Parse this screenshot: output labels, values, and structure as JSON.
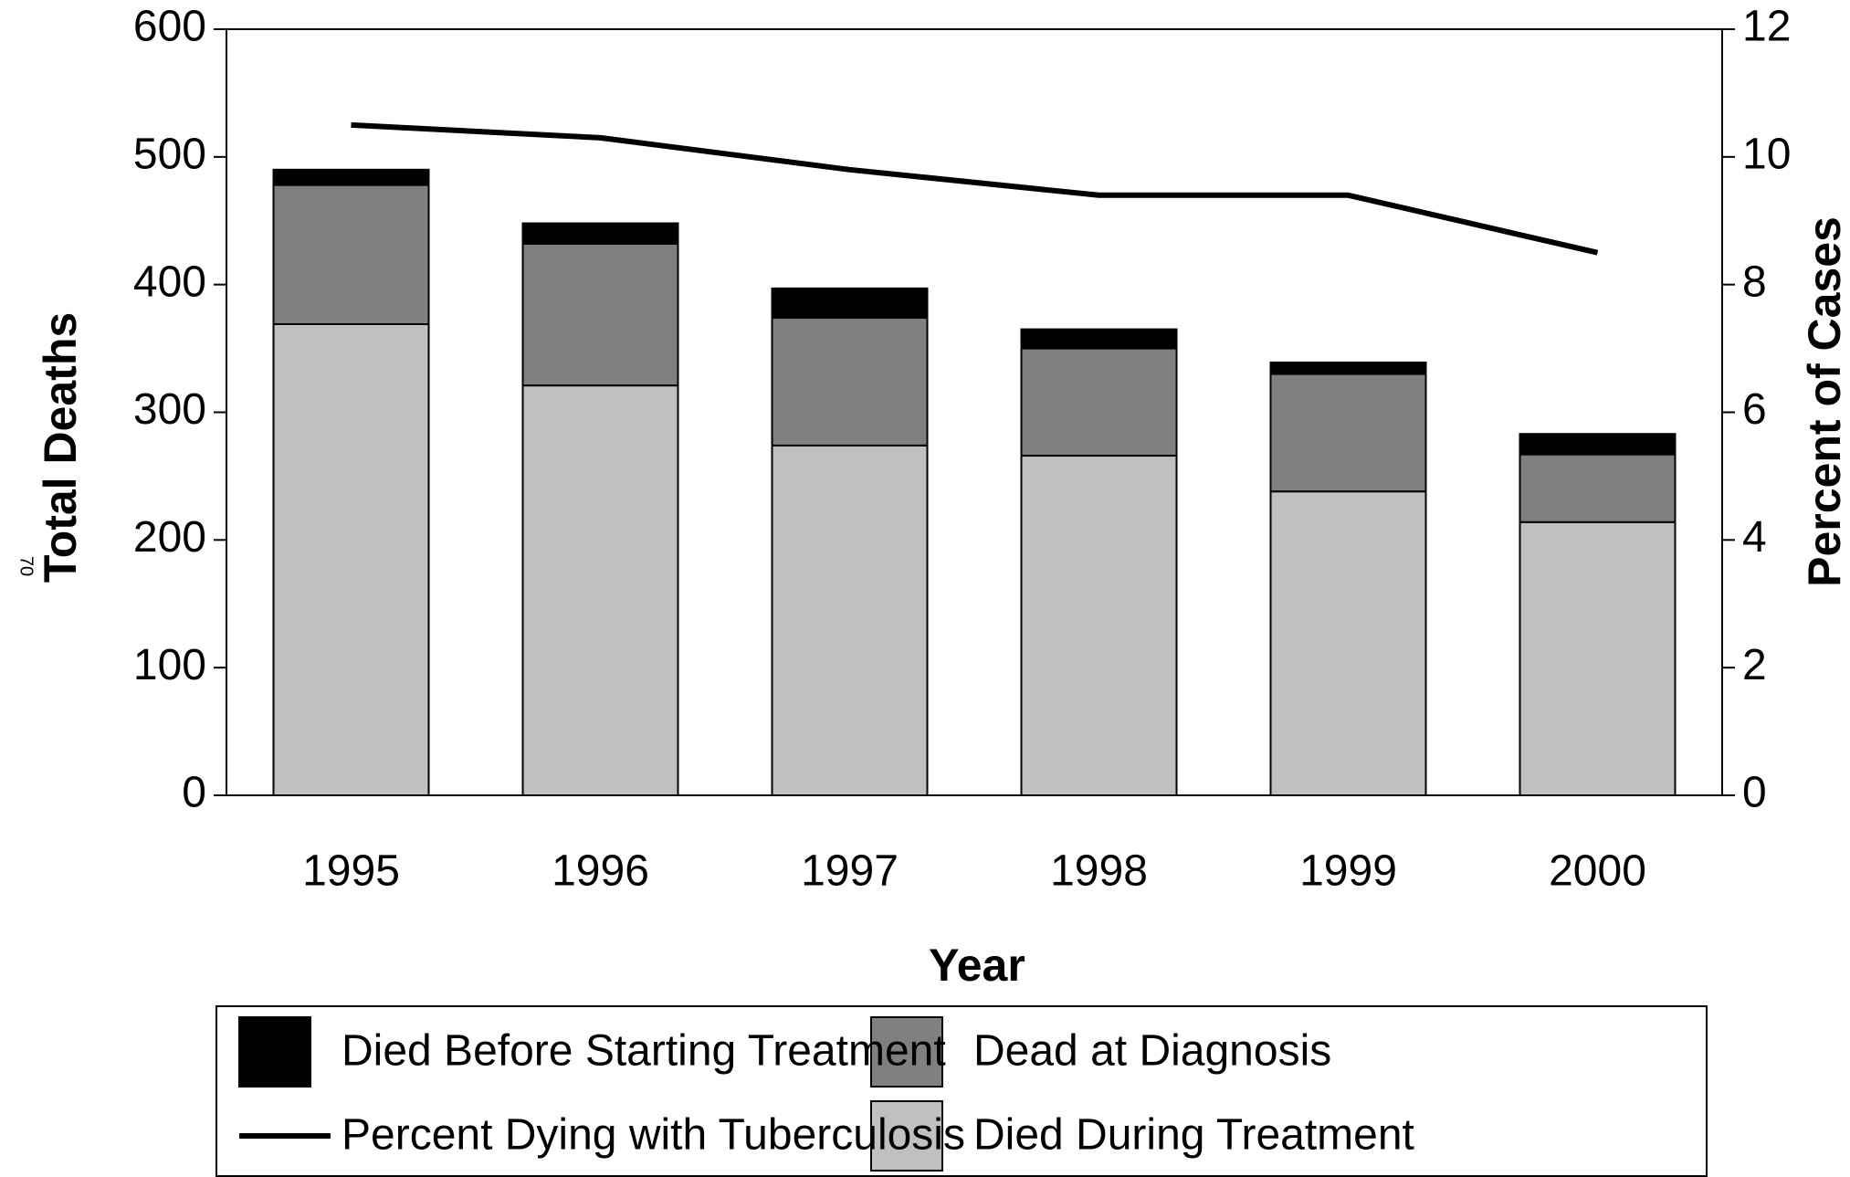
{
  "page_number": "70",
  "chart_data": {
    "type": "stacked-bar-line",
    "xlabel": "Year",
    "ylabel": "Total Deaths",
    "y2label": "Percent of Cases",
    "categories": [
      "1995",
      "1996",
      "1997",
      "1998",
      "1999",
      "2000"
    ],
    "series": [
      {
        "name": "Died During Treatment",
        "color": "#c0c0c0",
        "values": [
          369,
          321,
          274,
          266,
          238,
          214
        ]
      },
      {
        "name": "Dead at Diagnosis",
        "color": "#808080",
        "values": [
          109,
          111,
          100,
          84,
          92,
          53
        ]
      },
      {
        "name": "Died Before Starting Treatment",
        "color": "#000000",
        "values": [
          12,
          16,
          23,
          15,
          9,
          16
        ]
      },
      {
        "name": "Percent Dying with Tuberculosis",
        "color": "#000000",
        "axis": "y2",
        "values": [
          10.5,
          10.3,
          9.8,
          9.4,
          9.4,
          8.5
        ]
      }
    ],
    "ylim": [
      0,
      600
    ],
    "yticks": [
      0,
      100,
      200,
      300,
      400,
      500,
      600
    ],
    "y2lim": [
      0,
      12
    ],
    "y2ticks": [
      0,
      2,
      4,
      6,
      8,
      10,
      12
    ],
    "grid": false
  }
}
